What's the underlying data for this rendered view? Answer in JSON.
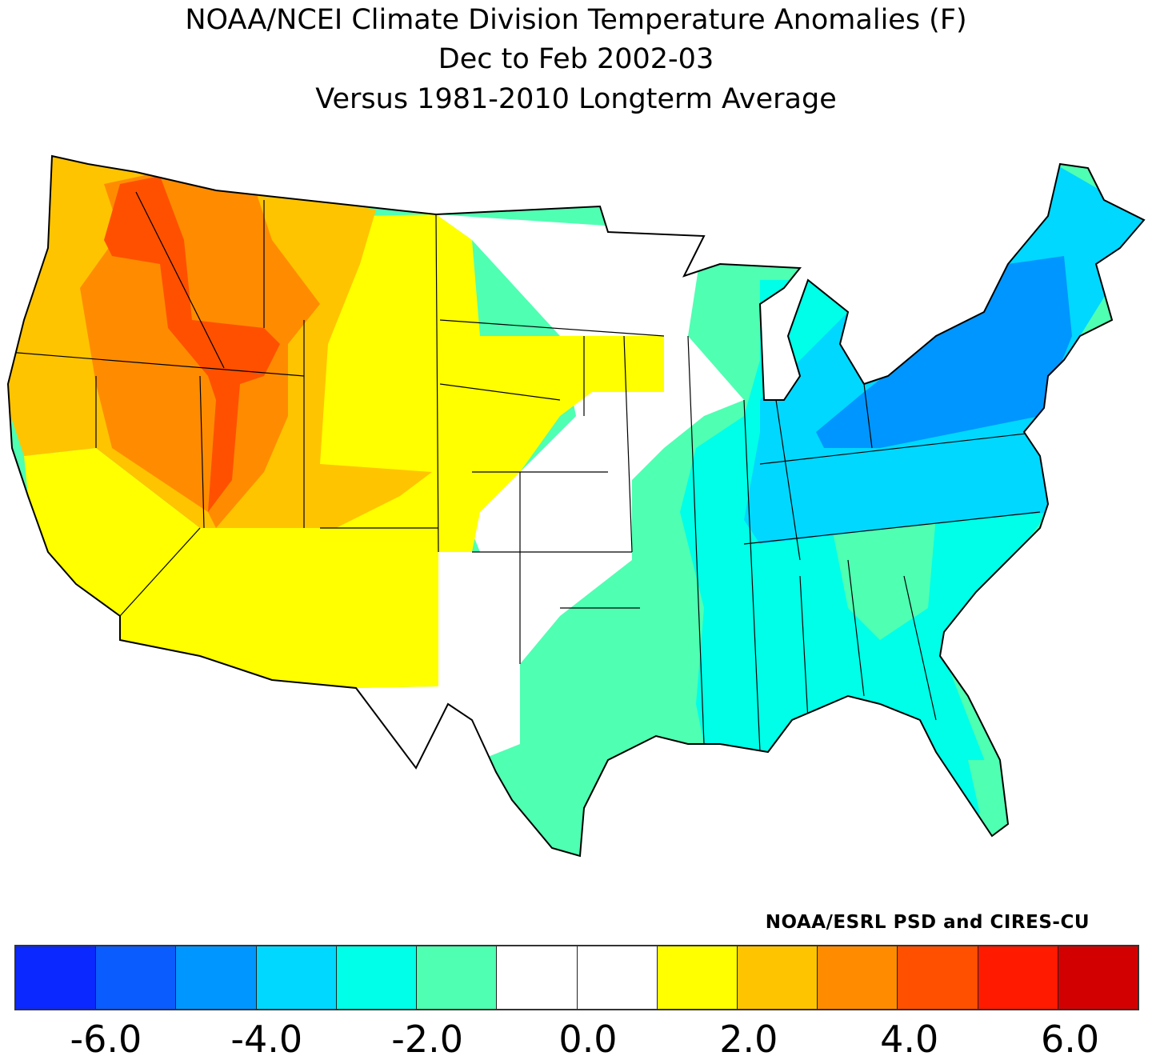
{
  "title": {
    "line1": "NOAA/NCEI Climate Division Temperature Anomalies (F)",
    "line2": "Dec to Feb 2002-03",
    "line3": "Versus 1981-2010 Longterm Average"
  },
  "credit": "NOAA/ESRL PSD and CIRES-CU",
  "legend": {
    "colors": [
      "#0a28ff",
      "#0a5cff",
      "#0096ff",
      "#00d8ff",
      "#00ffe8",
      "#4fffb2",
      "#ffffff",
      "#ffffff",
      "#ffff00",
      "#ffc400",
      "#ff8c00",
      "#ff5000",
      "#ff1a00",
      "#d20000"
    ],
    "ticks": [
      "-6.0",
      "-4.0",
      "-2.0",
      "0.0",
      "2.0",
      "4.0",
      "6.0"
    ],
    "tick_values": [
      -6,
      -4,
      -2,
      0,
      2,
      4,
      6
    ],
    "range": [
      -7,
      7
    ],
    "step": 1
  },
  "map": {
    "region": "Contiguous United States climate divisions",
    "pattern": [
      {
        "area": "Northwest / Great Basin",
        "anomaly_range": "+2 to +5",
        "color": "#ff8c00"
      },
      {
        "area": "Southwest / Northern Plains",
        "anomaly_range": "+1 to +2",
        "color": "#ffff00"
      },
      {
        "area": "Central Plains / Upper Midwest",
        "anomaly_range": "-1 to +1",
        "color": "#ffffff"
      },
      {
        "area": "South / Great Lakes",
        "anomaly_range": "-2 to -1",
        "color": "#4fffb2"
      },
      {
        "area": "Southeast / Ohio Valley",
        "anomaly_range": "-3 to -2",
        "color": "#00ffe8"
      },
      {
        "area": "Northeast",
        "anomaly_range": "-5 to -3",
        "color": "#0096ff"
      }
    ]
  }
}
